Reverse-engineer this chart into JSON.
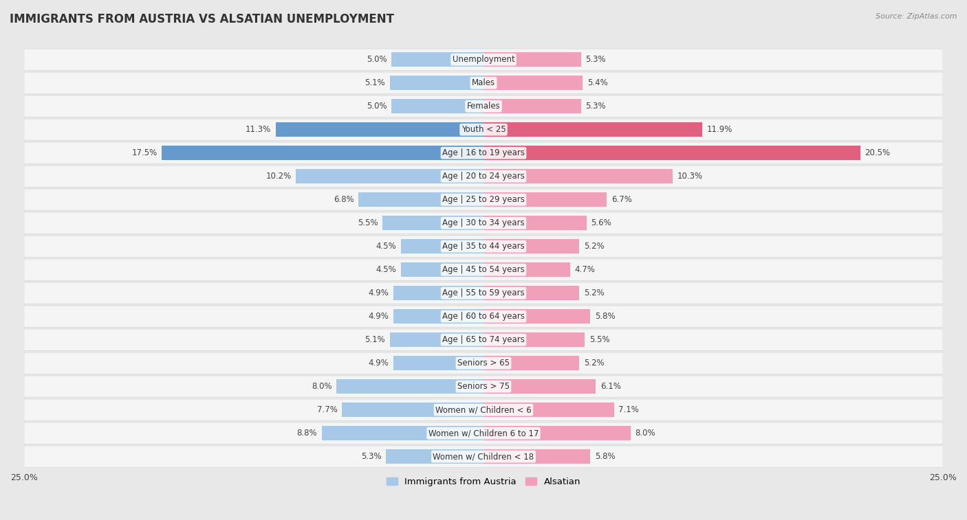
{
  "title": "IMMIGRANTS FROM AUSTRIA VS ALSATIAN UNEMPLOYMENT",
  "source": "Source: ZipAtlas.com",
  "categories": [
    "Unemployment",
    "Males",
    "Females",
    "Youth < 25",
    "Age | 16 to 19 years",
    "Age | 20 to 24 years",
    "Age | 25 to 29 years",
    "Age | 30 to 34 years",
    "Age | 35 to 44 years",
    "Age | 45 to 54 years",
    "Age | 55 to 59 years",
    "Age | 60 to 64 years",
    "Age | 65 to 74 years",
    "Seniors > 65",
    "Seniors > 75",
    "Women w/ Children < 6",
    "Women w/ Children 6 to 17",
    "Women w/ Children < 18"
  ],
  "left_values": [
    5.0,
    5.1,
    5.0,
    11.3,
    17.5,
    10.2,
    6.8,
    5.5,
    4.5,
    4.5,
    4.9,
    4.9,
    5.1,
    4.9,
    8.0,
    7.7,
    8.8,
    5.3
  ],
  "right_values": [
    5.3,
    5.4,
    5.3,
    11.9,
    20.5,
    10.3,
    6.7,
    5.6,
    5.2,
    4.7,
    5.2,
    5.8,
    5.5,
    5.2,
    6.1,
    7.1,
    8.0,
    5.8
  ],
  "left_color": "#a8c8e8",
  "right_color": "#f0a0b8",
  "highlight_left_color": "#6699cc",
  "highlight_right_color": "#e06080",
  "highlight_rows": [
    3,
    4
  ],
  "axis_max": 25.0,
  "bg_color": "#e8e8e8",
  "row_bg": "#f5f5f5",
  "row_sep_color": "#d8d8d8",
  "legend_left": "Immigrants from Austria",
  "legend_right": "Alsatian",
  "title_fontsize": 12,
  "label_fontsize": 8.5,
  "value_fontsize": 8.5
}
